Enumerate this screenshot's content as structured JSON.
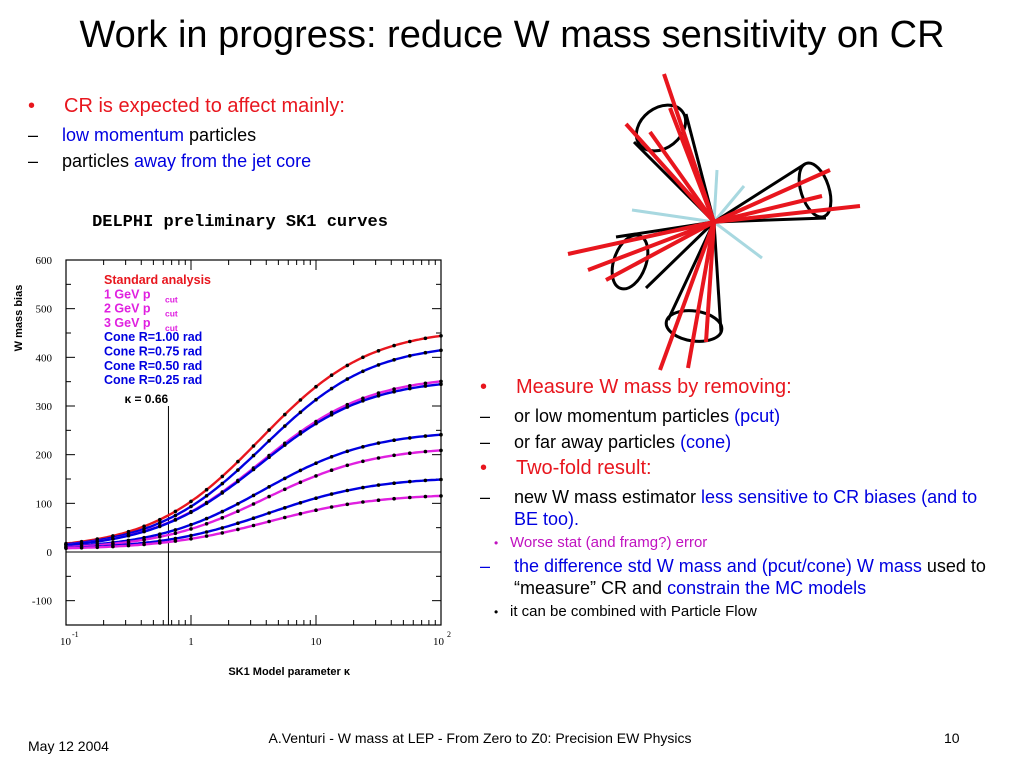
{
  "slide": {
    "title": "Work in progress: reduce W mass sensitivity on CR",
    "left_bullet": {
      "text": "CR is expected to affect mainly:"
    },
    "left_sub": [
      {
        "a": "low momentum",
        "b": " particles"
      },
      {
        "a": "particles ",
        "b": "away from the jet core"
      }
    ],
    "right": {
      "b1": "Measure W mass by removing:",
      "b1_sub1_a": "or low momentum particles ",
      "b1_sub1_b": "(pcut)",
      "b1_sub2_a": "or far away particles ",
      "b1_sub2_b": "(cone)",
      "b2": "Two-fold result:",
      "b2_sub1_a": "new W mass estimator ",
      "b2_sub1_b": "less sensitive to CR biases (and to BE too).",
      "b2_sub1_sub": "Worse stat (and framg?) error",
      "b2_sub2_a": "the difference std W mass and (pcut/cone) W mass",
      "b2_sub2_b": " used to “measure” CR and ",
      "b2_sub2_c": "constrain the MC models",
      "b2_sub2_sub": "it can be combined with Particle Flow"
    },
    "footer": {
      "date": "May 12 2004",
      "center": "A.Venturi - W mass at LEP - From Zero to Z0: Precision EW Physics",
      "page": "10"
    }
  },
  "chart_data": {
    "type": "line",
    "title": "DELPHI preliminary SK1 curves",
    "xlabel": "SK1 Model parameter κ",
    "ylabel": "W mass bias",
    "xscale": "log",
    "xlim": [
      0.1,
      100
    ],
    "ylim": [
      -150,
      600
    ],
    "yticks": [
      -100,
      0,
      100,
      200,
      300,
      400,
      500,
      600
    ],
    "xtick_labels": [
      "10",
      "-1",
      "1",
      "10",
      "10",
      "2"
    ],
    "kappa_marker": {
      "label": "κ = 0.66",
      "x": 0.66
    },
    "legend_labels": [
      "Standard analysis",
      "1 GeV p",
      "2 GeV p",
      "3 GeV p",
      "Cone R=1.00 rad",
      "Cone R=0.75 rad",
      "Cone R=0.50 rad",
      "Cone R=0.25 rad"
    ],
    "legend_sub": "cut",
    "series": [
      {
        "name": "Standard analysis",
        "color": "#e8161e",
        "plateau": 455,
        "x0": 3.6,
        "width": 1.0
      },
      {
        "name": "Cone R=1.00 rad",
        "color": "#0000e0",
        "plateau": 425,
        "x0": 3.8,
        "width": 1.0
      },
      {
        "name": "1 GeV pcut",
        "color": "#e020e0",
        "plateau": 358,
        "x0": 3.6,
        "width": 1.0
      },
      {
        "name": "Cone R=0.75 rad",
        "color": "#0000e0",
        "plateau": 352,
        "x0": 3.6,
        "width": 1.0
      },
      {
        "name": "Cone R=0.50 rad",
        "color": "#0000e0",
        "plateau": 245,
        "x0": 3.8,
        "width": 1.0
      },
      {
        "name": "2 GeV pcut",
        "color": "#e020e0",
        "plateau": 212,
        "x0": 4.0,
        "width": 1.0
      },
      {
        "name": "Cone R=0.25 rad",
        "color": "#0000e0",
        "plateau": 150,
        "x0": 4.2,
        "width": 1.0
      },
      {
        "name": "3 GeV pcut",
        "color": "#e020e0",
        "plateau": 115,
        "x0": 4.2,
        "width": 1.0
      }
    ],
    "series_offset": 5
  },
  "colors": {
    "red": "#e8161e",
    "blue": "#0000e0",
    "magenta": "#c012c0",
    "pcut_magenta": "#e020e0",
    "cone_line": "#000000",
    "light_blue": "#a8d8e0"
  }
}
